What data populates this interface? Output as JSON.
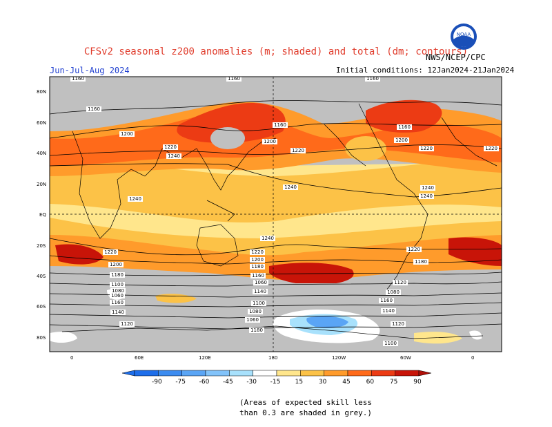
{
  "header": {
    "title": "CFSv2 seasonal z200 anomalies (m; shaded) and total (dm; contours)",
    "season": "Jun-Jul-Aug 2024",
    "initial_conditions": "Initial conditions: 12Jan2024-21Jan2024",
    "agency": "NWS/NCEP/CPC",
    "logo_text": "NOAA"
  },
  "map": {
    "lat_labels": [
      "80N",
      "60N",
      "40N",
      "20N",
      "EQ",
      "20S",
      "40S",
      "60S",
      "80S"
    ],
    "lon_labels": [
      "0",
      "60E",
      "120E",
      "180",
      "120W",
      "60W",
      "0"
    ],
    "contour_labels": [
      "1160",
      "1160",
      "1160",
      "1160",
      "1160",
      "1160",
      "1200",
      "1200",
      "1200",
      "1220",
      "1220",
      "1220",
      "1220",
      "1240",
      "1240",
      "1240",
      "1240",
      "1240",
      "1240",
      "1220",
      "1220",
      "1220",
      "1200",
      "1200",
      "1180",
      "1180",
      "1180",
      "1160",
      "1140",
      "1120",
      "1100",
      "1080",
      "1060",
      "1160",
      "1140",
      "1120",
      "1100",
      "1080",
      "1060",
      "1180",
      "1160",
      "1140",
      "1120",
      "1100",
      "1080",
      "1060"
    ]
  },
  "colorbar": {
    "labels": [
      "-90",
      "-75",
      "-60",
      "-45",
      "-30",
      "-15",
      "15",
      "30",
      "45",
      "60",
      "75",
      "90"
    ],
    "colors": [
      "#1e6eea",
      "#3c8cf0",
      "#5aa5f5",
      "#82c3fa",
      "#a8e1fc",
      "#ffffff",
      "#ffe68c",
      "#fcc247",
      "#ff9b2b",
      "#ff6a1a",
      "#ec3b14",
      "#c81408"
    ]
  },
  "colors": {
    "skill_grey": "#c0c0c0",
    "title_red": "#e03c2c",
    "season_blue": "#2040d0"
  },
  "note": {
    "line1": "(Areas of expected skill less",
    "line2": "than 0.3 are shaded in grey.)"
  }
}
